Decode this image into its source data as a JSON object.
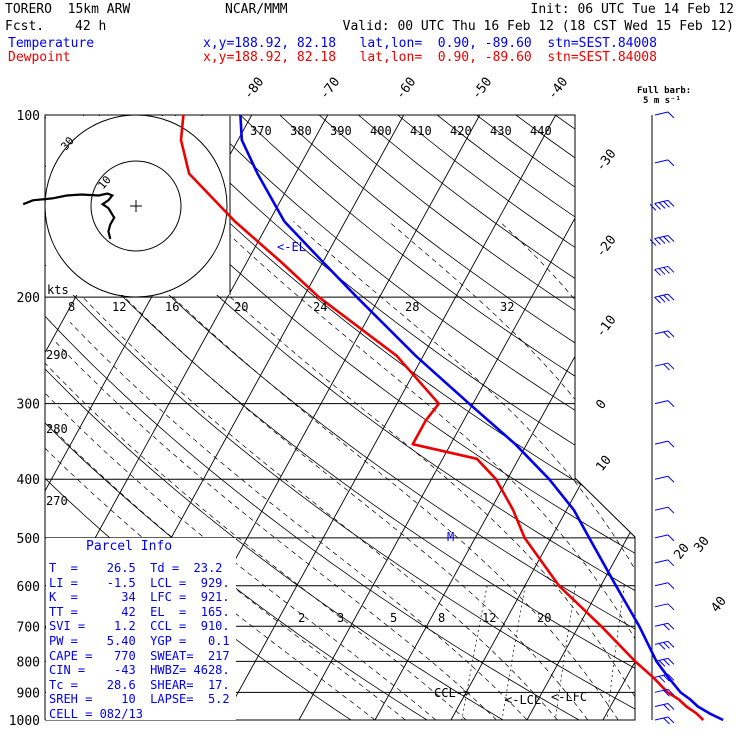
{
  "header": {
    "model": "TORERO  15km ARW",
    "center": "NCAR/MMM",
    "init": "Init: 06 UTC Tue 14 Feb 12",
    "fcst_label": "Fcst.",
    "fcst_value": "42 h",
    "valid": "Valid: 00 UTC Thu 16 Feb 12 (18 CST Wed 15 Feb 12)",
    "temp_label": "Temperature",
    "dew_label": "Dewpoint",
    "loc_line": "x,y=188.92, 82.18   lat,lon=  0.90, -89.60  stn=SEST.84008",
    "loc_line_dew": "x,y=188.92, 82.18   lat,lon=  0.90, -89.60  stn=SEST.84008"
  },
  "barb_legend": {
    "line1": "Full barb:",
    "line2": "5 m s⁻¹"
  },
  "colors": {
    "temperature": "#0000ee",
    "dewpoint": "#ee0000",
    "hodograph_line": "#000000"
  },
  "chart_data": {
    "type": "line",
    "title": "Skew-T log-P sounding",
    "pressure_levels": [
      100,
      200,
      300,
      400,
      500,
      600,
      700,
      800,
      900,
      1000
    ],
    "pressure_labels": [
      "100",
      "200",
      "300",
      "400",
      "500",
      "600",
      "700",
      "800",
      "900",
      "1000"
    ],
    "isotherm_labels": [
      "-80",
      "-70",
      "-60",
      "-50",
      "-40",
      "-30",
      "-20",
      "-10",
      "0",
      "10",
      "20",
      "30",
      "40"
    ],
    "theta_labels": [
      "370",
      "380",
      "390",
      "400",
      "410",
      "420",
      "430",
      "440"
    ],
    "theta_side_labels": [
      "290",
      "280",
      "270"
    ],
    "mixing_ratio_labels": [
      "2",
      "3",
      "5",
      "8",
      "12",
      "20"
    ],
    "series": [
      {
        "name": "Temperature",
        "color": "#0000ee",
        "p": [
          1000,
          975,
          950,
          925,
          900,
          850,
          800,
          700,
          600,
          500,
          450,
          400,
          350,
          300,
          250,
          200,
          175,
          150,
          125,
          110,
          100
        ],
        "t": [
          25.8,
          23.5,
          21.5,
          20.0,
          18.2,
          15.5,
          12.8,
          8.0,
          2.0,
          -5.0,
          -9.0,
          -14.5,
          -21.5,
          -30.5,
          -41.0,
          -53.0,
          -60.0,
          -68.0,
          -75.0,
          -79.5,
          -81.5
        ]
      },
      {
        "name": "Dewpoint",
        "color": "#ee0000",
        "p": [
          1000,
          975,
          950,
          925,
          900,
          850,
          800,
          700,
          600,
          500,
          450,
          400,
          370,
          350,
          320,
          300,
          250,
          200,
          175,
          150,
          125,
          110,
          100
        ],
        "t": [
          23.2,
          21.8,
          20.0,
          18.5,
          16.5,
          13.5,
          10.0,
          3.0,
          -5.5,
          -13.5,
          -17.0,
          -21.5,
          -25.5,
          -35.0,
          -35.0,
          -34.5,
          -43.5,
          -58.0,
          -65.5,
          -74.5,
          -84.0,
          -87.5,
          -89.0
        ]
      }
    ],
    "annotations": {
      "el": "<-EL",
      "lcl": "<-LCL",
      "lfc": "<-LFC",
      "ccl": "CCL->",
      "marker": "M"
    },
    "hodograph": {
      "unit_label": "kts",
      "ring_labels": [
        "10",
        "30"
      ],
      "axis_labels": [
        "8",
        "12",
        "16",
        "20",
        "24",
        "28",
        "32"
      ],
      "trace_u": [
        -1.0,
        -1.2,
        -1.0,
        -0.6,
        -1.2,
        -1.8,
        -1.2,
        -0.8,
        -1.3,
        -2.2,
        -4.0,
        -5.5,
        -7.0,
        -9.0,
        -10.0
      ],
      "trace_v": [
        -3.0,
        -2.2,
        -1.5,
        -0.8,
        0.2,
        0.6,
        1.0,
        1.5,
        1.7,
        1.5,
        1.6,
        1.5,
        1.2,
        1.0,
        0.6
      ]
    },
    "wind_barbs": {
      "p": [
        100,
        120,
        140,
        160,
        180,
        200,
        230,
        260,
        300,
        350,
        400,
        450,
        500,
        550,
        600,
        650,
        700,
        750,
        800,
        850,
        900,
        950,
        1000
      ],
      "barbs": [
        1,
        1,
        5,
        5,
        4,
        4,
        2,
        2,
        1,
        1,
        1,
        1,
        1,
        1,
        1,
        1,
        2,
        3,
        3,
        3,
        2,
        2,
        2
      ]
    }
  },
  "parcel_info": {
    "title": "Parcel Info",
    "rows": [
      "T  =    26.5  Td =  23.2",
      "LI =    -1.5  LCL =  929.",
      "K  =      34  LFC =  921.",
      "TT =      42  EL  =  165.",
      "SVI =    1.2  CCL =  910.",
      "PW =    5.40  YGP =   0.1",
      "CAPE =   770  SWEAT=  217",
      "CIN =    -43  HWBZ= 4628.",
      "Tc =    28.6  SHEAR=  17.",
      "SREH =    10  LAPSE=  5.2",
      "CELL = 082/13"
    ]
  }
}
